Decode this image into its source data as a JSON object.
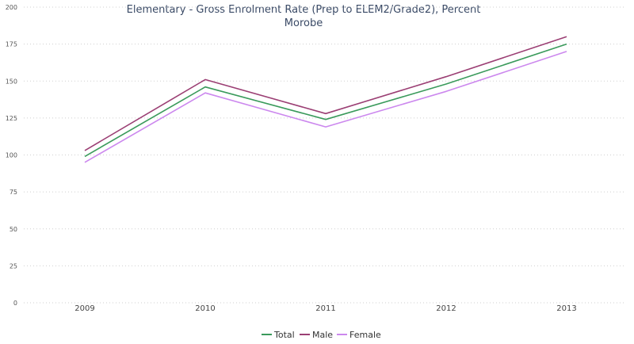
{
  "chart_data": {
    "type": "line",
    "title": "Elementary - Gross Enrolment Rate (Prep to ELEM2/Grade2), Percent",
    "subtitle": "Morobe",
    "xlabel": "",
    "ylabel": "",
    "categories": [
      "2009",
      "2010",
      "2011",
      "2012",
      "2013"
    ],
    "yticks": [
      "0",
      "25",
      "50",
      "75",
      "100",
      "125",
      "150",
      "175",
      "200"
    ],
    "ylim": [
      0,
      200
    ],
    "grid": true,
    "legend": "bottom-center",
    "series": [
      {
        "name": "Total",
        "color": "#3a9a5b",
        "values": [
          99,
          146,
          124,
          148,
          175
        ]
      },
      {
        "name": "Male",
        "color": "#9b3f74",
        "values": [
          103,
          151,
          128,
          153,
          180
        ]
      },
      {
        "name": "Female",
        "color": "#cc88ee",
        "values": [
          95,
          142,
          119,
          143,
          170
        ]
      }
    ]
  }
}
